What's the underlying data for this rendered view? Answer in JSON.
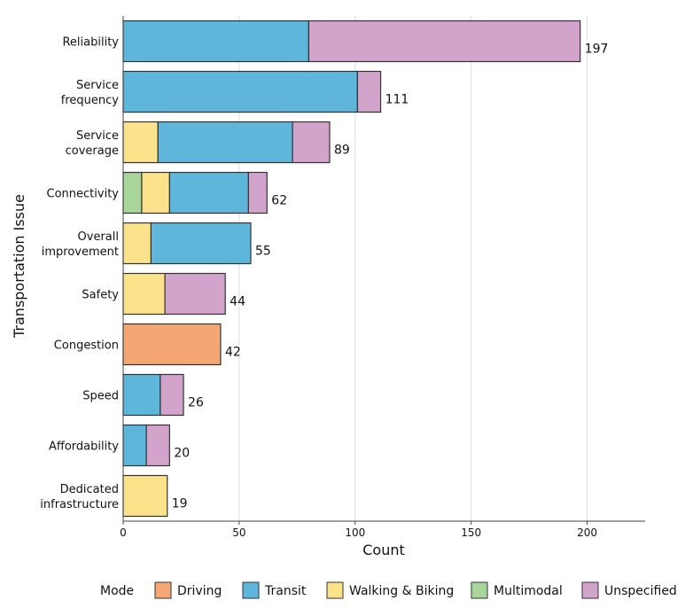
{
  "chart_data": {
    "type": "bar",
    "orientation": "horizontal",
    "stacked": true,
    "xlabel": "Count",
    "ylabel": "Transportation Issue",
    "xlim": [
      0,
      225
    ],
    "xticks": [
      0,
      50,
      100,
      150,
      200
    ],
    "grid": "vertical major",
    "legend_title": "Mode",
    "legend_position": "bottom",
    "categories": [
      "Reliability",
      "Service\nfrequency",
      "Service\ncoverage",
      "Connectivity",
      "Overall\nimprovement",
      "Safety",
      "Congestion",
      "Speed",
      "Affordability",
      "Dedicated\ninfrastructure"
    ],
    "totals": [
      197,
      111,
      89,
      62,
      55,
      44,
      42,
      26,
      20,
      19
    ],
    "stack_order": [
      "Multimodal",
      "Driving",
      "Walking & Biking",
      "Transit",
      "Unspecified"
    ],
    "series": [
      {
        "name": "Driving",
        "color": "#F4A772",
        "values": [
          0,
          0,
          0,
          0,
          0,
          0,
          42,
          0,
          0,
          0
        ]
      },
      {
        "name": "Transit",
        "color": "#5EB6DA",
        "values": [
          80,
          101,
          58,
          34,
          43,
          0,
          0,
          16,
          10,
          0
        ]
      },
      {
        "name": "Walking & Biking",
        "color": "#FDE28C",
        "values": [
          0,
          0,
          15,
          12,
          12,
          18,
          0,
          0,
          0,
          19
        ]
      },
      {
        "name": "Multimodal",
        "color": "#A8D59A",
        "values": [
          0,
          0,
          0,
          8,
          0,
          0,
          0,
          0,
          0,
          0
        ]
      },
      {
        "name": "Unspecified",
        "color": "#D3A4CB",
        "values": [
          117,
          10,
          16,
          8,
          0,
          26,
          0,
          10,
          10,
          0
        ]
      }
    ]
  }
}
